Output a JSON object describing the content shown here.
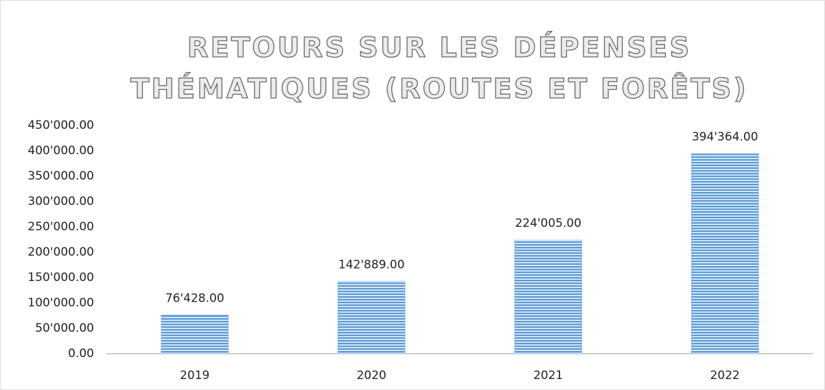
{
  "chart_data": {
    "type": "bar",
    "title": [
      "RETOURS SUR LES DÉPENSES",
      "THÉMATIQUES (ROUTES ET FORÊTS)"
    ],
    "categories": [
      "2019",
      "2020",
      "2021",
      "2022"
    ],
    "values": [
      76428,
      142889,
      224005,
      394364
    ],
    "value_labels": [
      "76'428.00",
      "142'889.00",
      "224'005.00",
      "394'364.00"
    ],
    "color": "#5b9bd5",
    "ylim": [
      0,
      450000
    ],
    "yticks": [
      {
        "value": 0,
        "label": "0.00"
      },
      {
        "value": 50000,
        "label": "50'000.00"
      },
      {
        "value": 100000,
        "label": "100'000.00"
      },
      {
        "value": 150000,
        "label": "150'000.00"
      },
      {
        "value": 200000,
        "label": "200'000.00"
      },
      {
        "value": 250000,
        "label": "250'000.00"
      },
      {
        "value": 300000,
        "label": "300'000.00"
      },
      {
        "value": 350000,
        "label": "350'000.00"
      },
      {
        "value": 400000,
        "label": "400'000.00"
      },
      {
        "value": 450000,
        "label": "450'000.00"
      }
    ],
    "grid": false
  }
}
